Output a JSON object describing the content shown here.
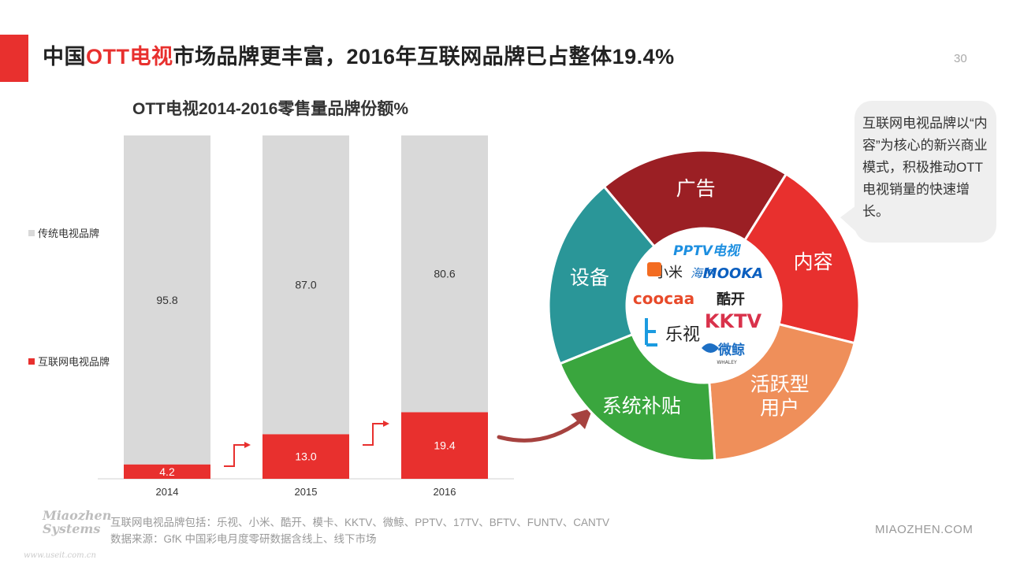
{
  "header": {
    "title_pre": "中国",
    "title_hl": "OTT电视",
    "title_post": "市场品牌更丰富，2016年互联网品牌已占整体19.4%",
    "page_number": "30",
    "accent_color": "#e8302e"
  },
  "chart_data": {
    "type": "bar",
    "stacked": true,
    "title": "OTT电视2014-2016零售量品牌份额%",
    "categories": [
      "2014",
      "2015",
      "2016"
    ],
    "series": [
      {
        "name": "互联网电视品牌",
        "values": [
          4.2,
          13.0,
          19.4
        ],
        "labels": [
          "4.2",
          "13.0",
          "19.4"
        ],
        "color": "#e8302e"
      },
      {
        "name": "传统电视品牌",
        "values": [
          95.8,
          87.0,
          80.6
        ],
        "labels": [
          "95.8",
          "87.0",
          "80.6"
        ],
        "color": "#d9d9d9"
      }
    ],
    "ylim": [
      0,
      100
    ],
    "grid": false,
    "legend_position": "left"
  },
  "wheel": {
    "segments": [
      {
        "label": "广告",
        "color": "#9b1f24"
      },
      {
        "label": "内容",
        "color": "#e8302e"
      },
      {
        "label": "活跃型\n用户",
        "color": "#ef8f5a"
      },
      {
        "label": "系统补贴",
        "color": "#3aa63e"
      },
      {
        "label": "设备",
        "color": "#2a9698"
      }
    ],
    "center_brands": [
      "PPTV电视",
      "小米",
      "海尔",
      "MOOKA",
      "coocaa",
      "酷开",
      "乐视",
      "KKTV",
      "微鲸",
      "WHALEY"
    ]
  },
  "callout": {
    "text": "互联网电视品牌以“内容”为核心的新兴商业模式，积极推动OTT电视销量的快速增长。"
  },
  "footnotes": {
    "brands": "互联网电视品牌包括：乐视、小米、酷开、模卡、KKTV、微鲸、PPTV、17TV、BFTV、FUNTV、CANTV",
    "source": "数据来源：GfK 中国彩电月度零研数据含线上、线下市场"
  },
  "branding": {
    "logo_line1": "Miaozhen",
    "logo_line2": "Systems",
    "logo_url": "www.useit.com.cn",
    "site": "MIAOZHEN.COM"
  }
}
